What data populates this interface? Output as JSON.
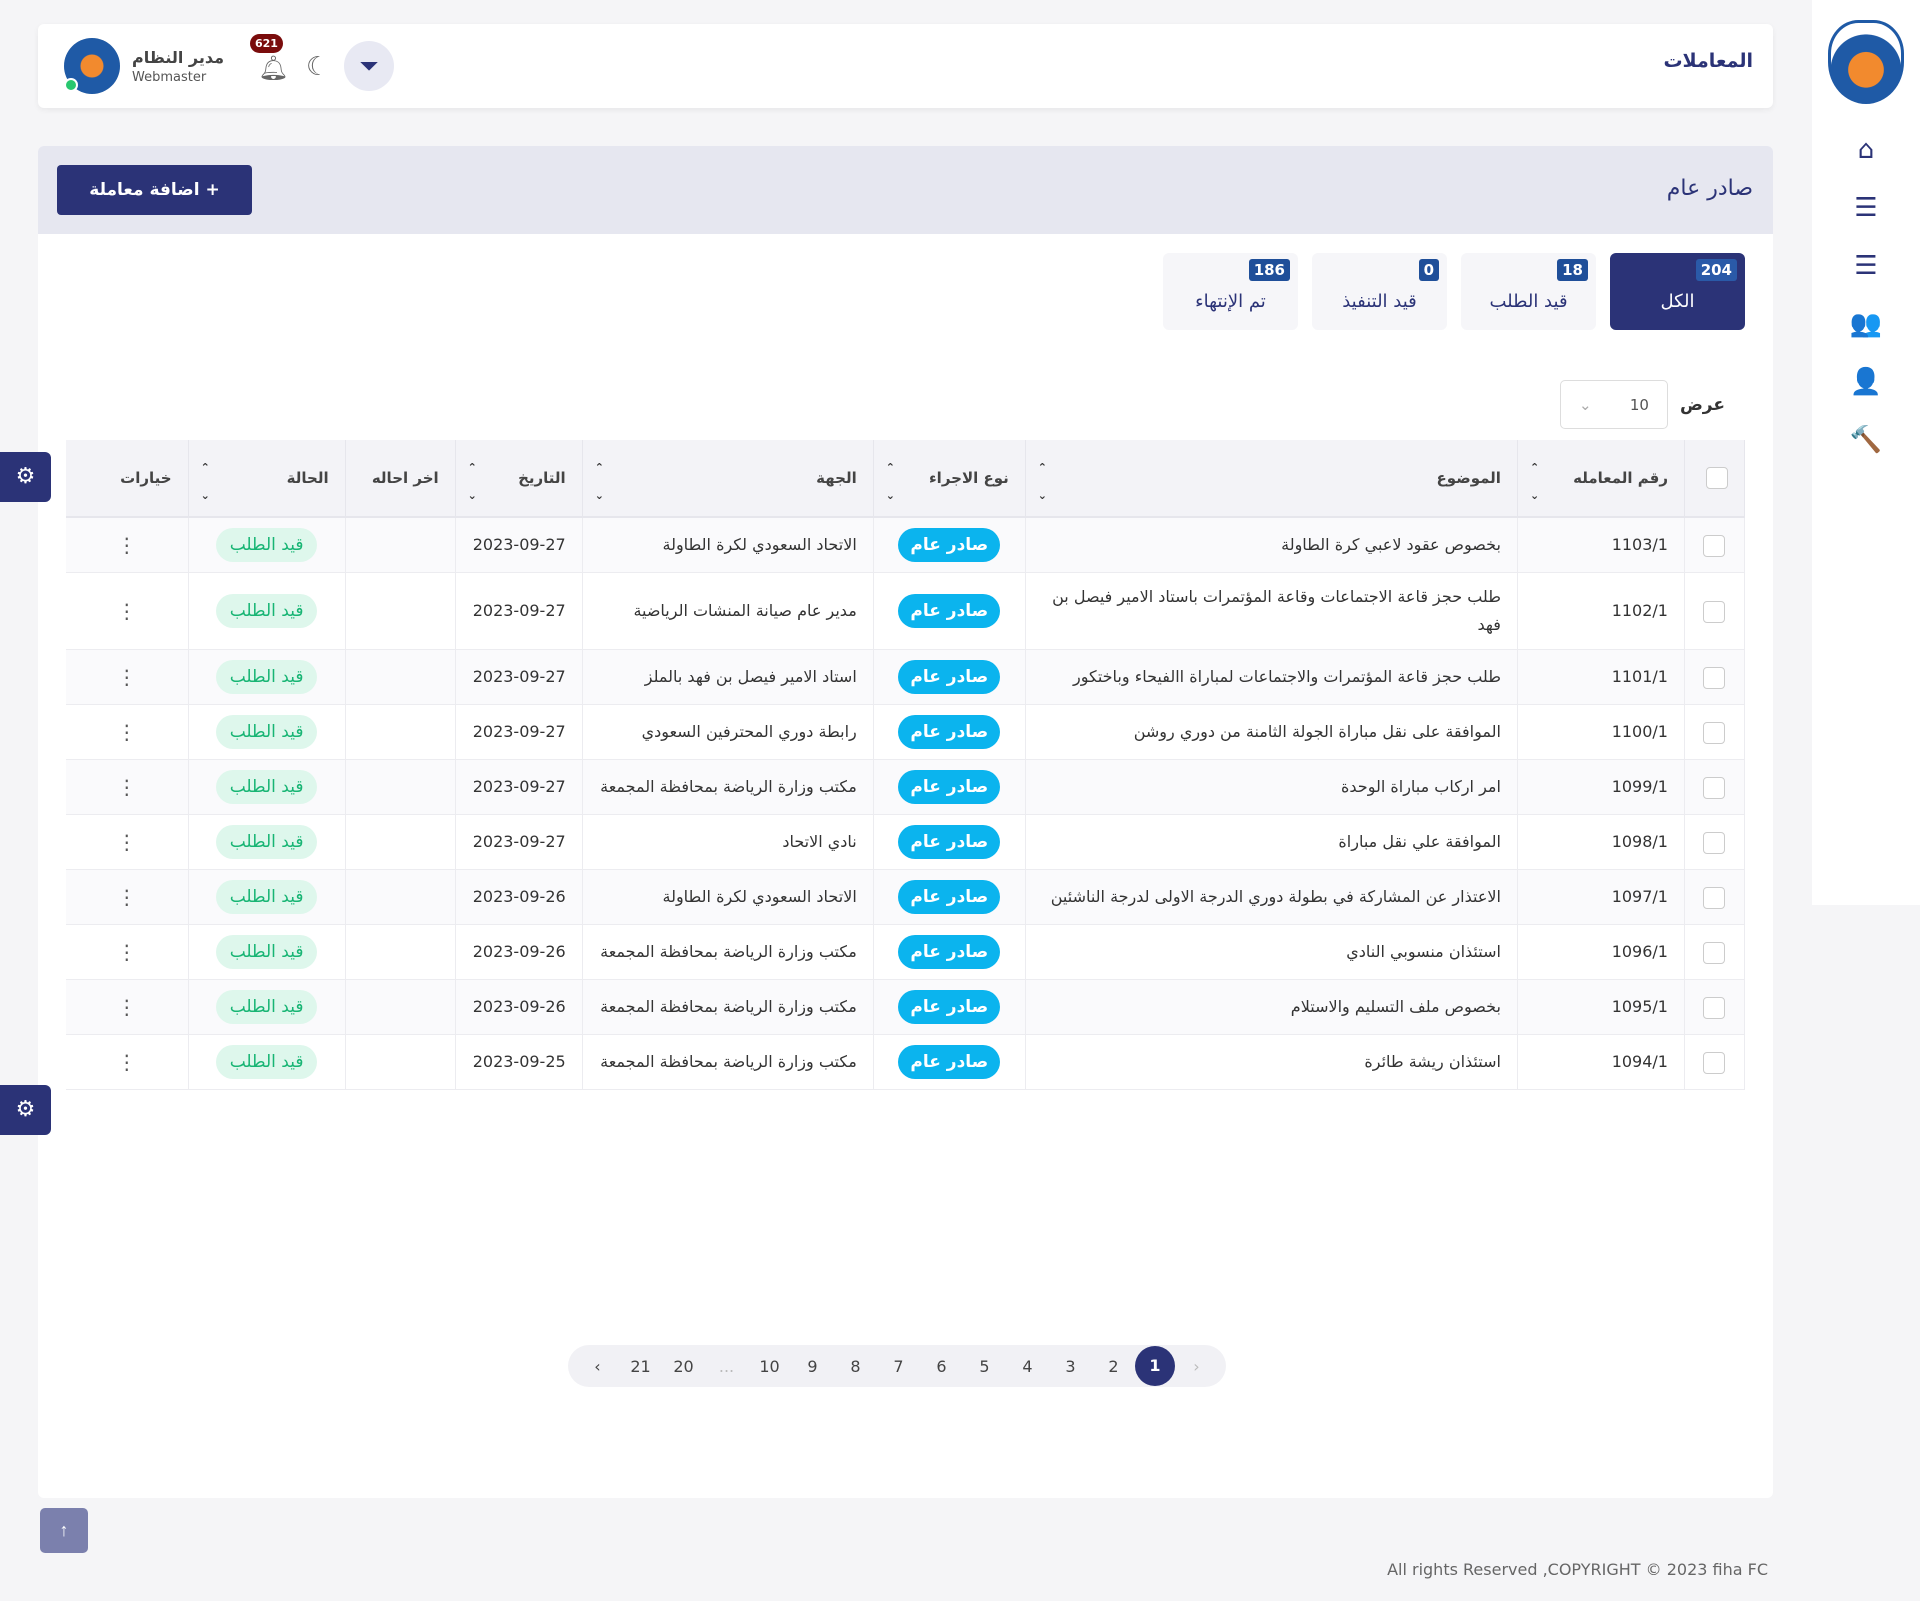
{
  "header": {
    "title": "المعاملات",
    "user_name": "مدير النظام",
    "user_role": "Webmaster",
    "notifications": "621"
  },
  "sidebar": {
    "items": [
      {
        "icon": "home-icon"
      },
      {
        "icon": "list-icon"
      },
      {
        "icon": "list-icon"
      },
      {
        "icon": "users-icon"
      },
      {
        "icon": "user-check-icon"
      },
      {
        "icon": "gavel-icon"
      }
    ]
  },
  "card": {
    "title": "صادر عام",
    "add_button": "اضافة معاملة +"
  },
  "tabs": [
    {
      "label": "الكل",
      "count": "204"
    },
    {
      "label": "قيد الطلب",
      "count": "18"
    },
    {
      "label": "قيد التنفيذ",
      "count": "0"
    },
    {
      "label": "تم الإنتهاء",
      "count": "186"
    }
  ],
  "show": {
    "label": "عرض",
    "value": "10"
  },
  "table": {
    "columns": [
      "رقم المعامله",
      "الموضوع",
      "نوع الاجراء",
      "الجهة",
      "التاريخ",
      "اخر احاله",
      "الحالة",
      "خيارات"
    ],
    "rows": [
      {
        "no": "1103/1",
        "subject": "بخصوص عقود لاعبي كرة الطاولة",
        "type": "صادر عام",
        "party": "الاتحاد السعودي لكرة الطاولة",
        "date": "2023-09-27",
        "last": "",
        "status": "قيد الطلب"
      },
      {
        "no": "1102/1",
        "subject": "طلب حجز قاعة الاجتماعات وقاعة المؤتمرات باستاد الامير فيصل بن فهد",
        "type": "صادر عام",
        "party": "مدير عام صيانة المنشات الرياضية",
        "date": "2023-09-27",
        "last": "",
        "status": "قيد الطلب"
      },
      {
        "no": "1101/1",
        "subject": "طلب حجز قاعة المؤتمرات والاجتماعات لمباراة االفيحاء وباختكور",
        "type": "صادر عام",
        "party": "استاد الامير فيصل بن فهد بالملز",
        "date": "2023-09-27",
        "last": "",
        "status": "قيد الطلب"
      },
      {
        "no": "1100/1",
        "subject": "الموافقة على نقل مباراة الجولة الثامنة من دوري روشن",
        "type": "صادر عام",
        "party": "رابطة دوري المحترفين السعودي",
        "date": "2023-09-27",
        "last": "",
        "status": "قيد الطلب"
      },
      {
        "no": "1099/1",
        "subject": "امر اركاب مباراة الوحدة",
        "type": "صادر عام",
        "party": "مكتب وزارة الرياضة بمحافظة المجمعة",
        "date": "2023-09-27",
        "last": "",
        "status": "قيد الطلب"
      },
      {
        "no": "1098/1",
        "subject": "الموافقة علي نقل مباراة",
        "type": "صادر عام",
        "party": "نادي الاتحاد",
        "date": "2023-09-27",
        "last": "",
        "status": "قيد الطلب"
      },
      {
        "no": "1097/1",
        "subject": "الاعتذار عن المشاركة في بطولة دوري الدرجة الاولى لدرجة الناشئين",
        "type": "صادر عام",
        "party": "الاتحاد السعودي لكرة الطاولة",
        "date": "2023-09-26",
        "last": "",
        "status": "قيد الطلب"
      },
      {
        "no": "1096/1",
        "subject": "استئذان منسوبي النادي",
        "type": "صادر عام",
        "party": "مكتب وزارة الرياضة بمحافظة المجمعة",
        "date": "2023-09-26",
        "last": "",
        "status": "قيد الطلب"
      },
      {
        "no": "1095/1",
        "subject": "بخصوص ملف التسليم والاستلام",
        "type": "صادر عام",
        "party": "مكتب وزارة الرياضة بمحافظة المجمعة",
        "date": "2023-09-26",
        "last": "",
        "status": "قيد الطلب"
      },
      {
        "no": "1094/1",
        "subject": "استئذان ريشة طائرة",
        "type": "صادر عام",
        "party": "مكتب وزارة الرياضة بمحافظة المجمعة",
        "date": "2023-09-25",
        "last": "",
        "status": "قيد الطلب"
      }
    ]
  },
  "pagination": {
    "pages": [
      "‹",
      "21",
      "20",
      "...",
      "10",
      "9",
      "8",
      "7",
      "6",
      "5",
      "4",
      "3",
      "2",
      "1",
      "›"
    ],
    "current": "1"
  },
  "footer": "All rights Reserved ,COPYRIGHT © 2023 fiha FC",
  "colors": {
    "primary": "#2b3377",
    "type_badge": "#0bb4ee",
    "status_text": "#18b574"
  }
}
